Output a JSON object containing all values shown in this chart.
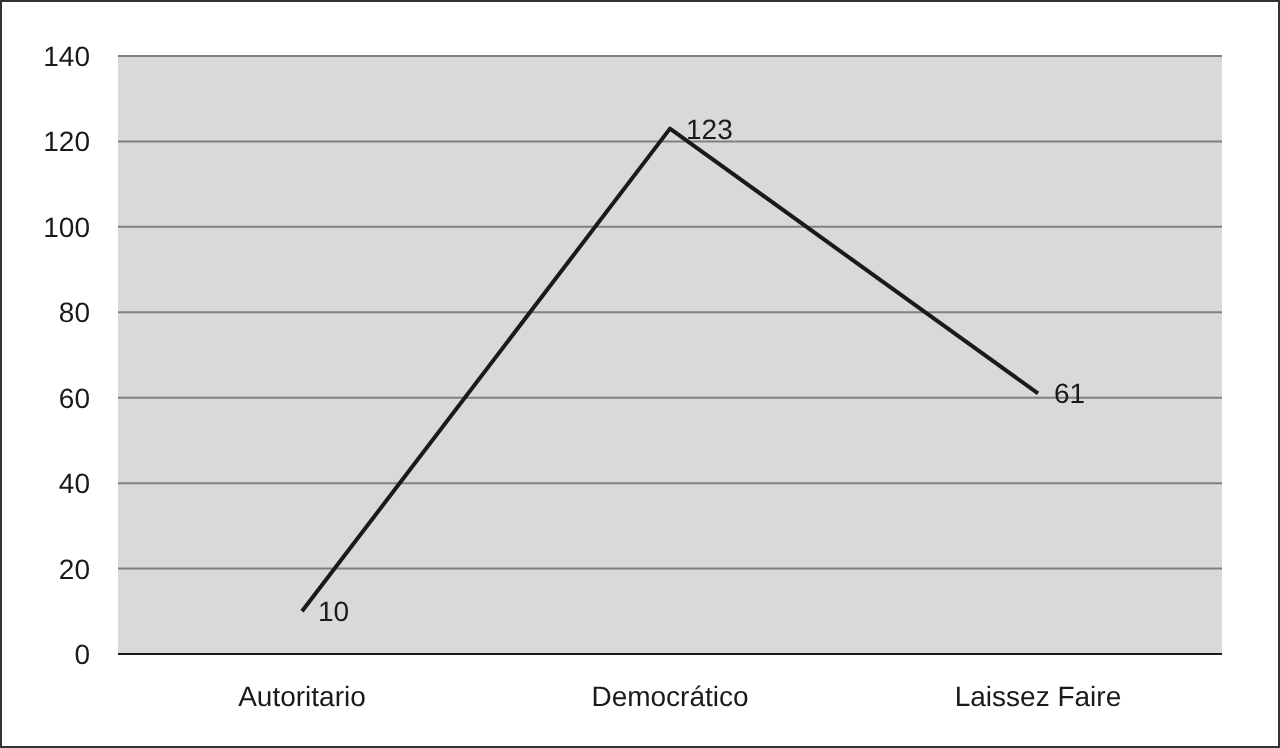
{
  "chart_data": {
    "type": "line",
    "categories": [
      "Autoritario",
      "Democrático",
      "Laissez Faire"
    ],
    "series": [
      {
        "color": "#1a1a1a",
        "values": [
          10,
          123,
          61
        ]
      }
    ],
    "ylim": [
      0,
      140
    ],
    "yticks": [
      0,
      20,
      40,
      60,
      80,
      100,
      120,
      140
    ],
    "grid": "y",
    "data_labels": true,
    "legend": false,
    "marker": "none"
  }
}
